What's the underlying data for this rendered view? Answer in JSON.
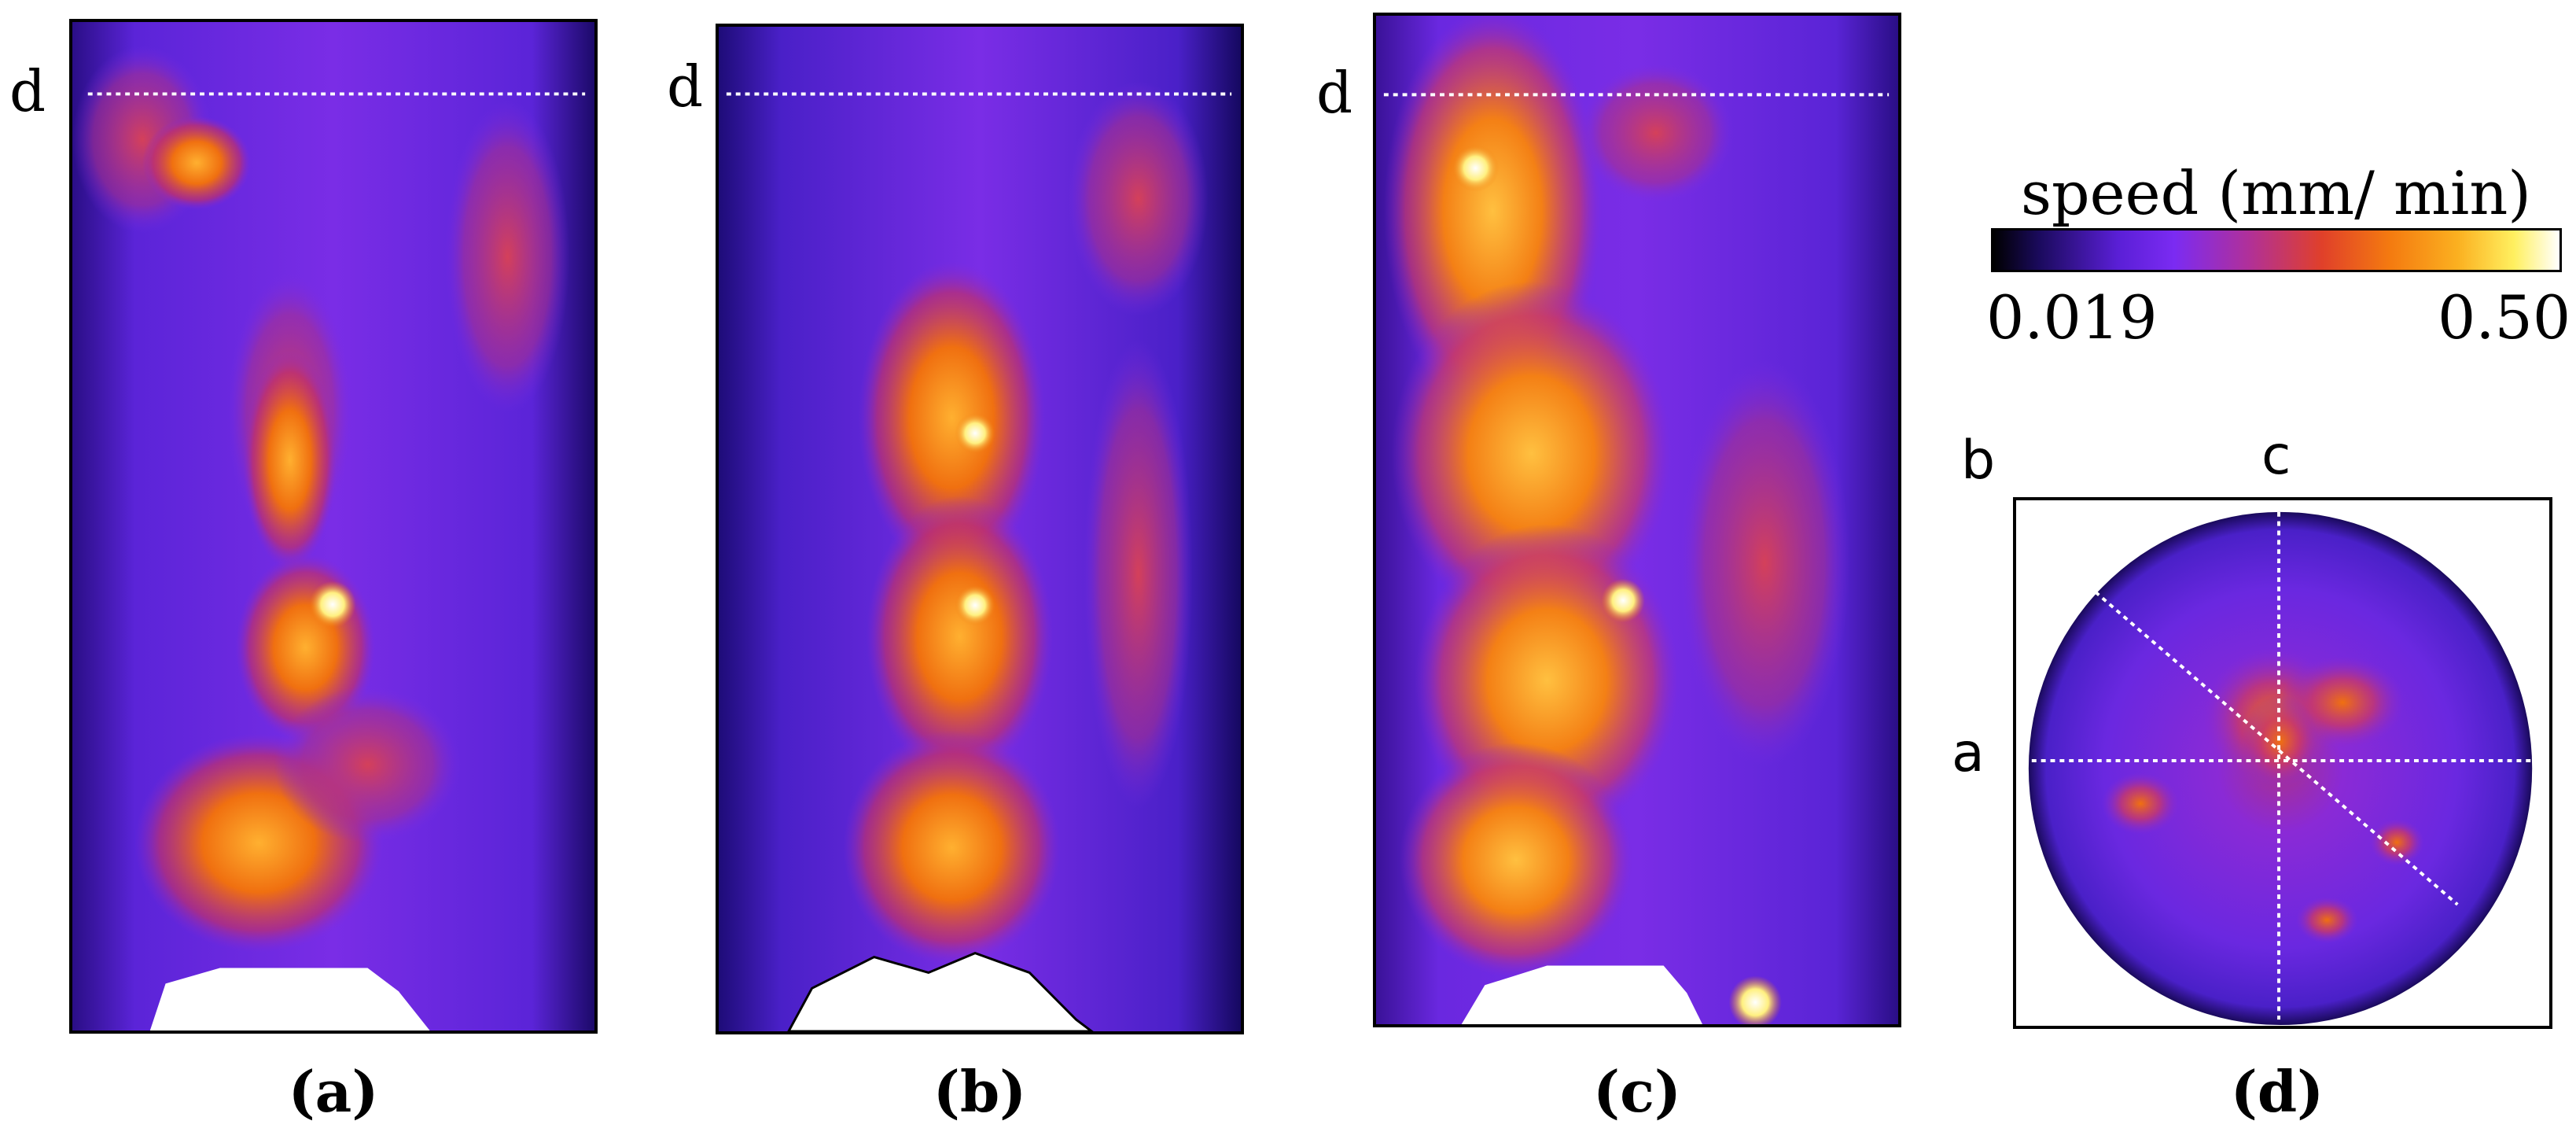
{
  "panels": [
    {
      "depth_label": "d",
      "caption": "(a)"
    },
    {
      "depth_label": "d",
      "caption": "(b)"
    },
    {
      "depth_label": "d",
      "caption": "(c)"
    }
  ],
  "top_view": {
    "caption": "(d)",
    "labels": {
      "a": "a",
      "b": "b",
      "c": "c"
    }
  },
  "colorbar": {
    "title": "speed (mm/ min)",
    "min_label": "0.019",
    "max_label": "0.50",
    "min_value": 0.019,
    "max_value": 0.5,
    "colormap": [
      "#000000",
      "#1a0a5c",
      "#5a1fd6",
      "#7b2bf2",
      "#b0309a",
      "#e0402a",
      "#f47a10",
      "#fbb020",
      "#fff060",
      "#ffffff"
    ]
  },
  "colors": {
    "background_field": "#6a2ee8",
    "hot_core": "#f58a18",
    "deposit": "#ffffff",
    "guide_line": "#ffffff"
  }
}
